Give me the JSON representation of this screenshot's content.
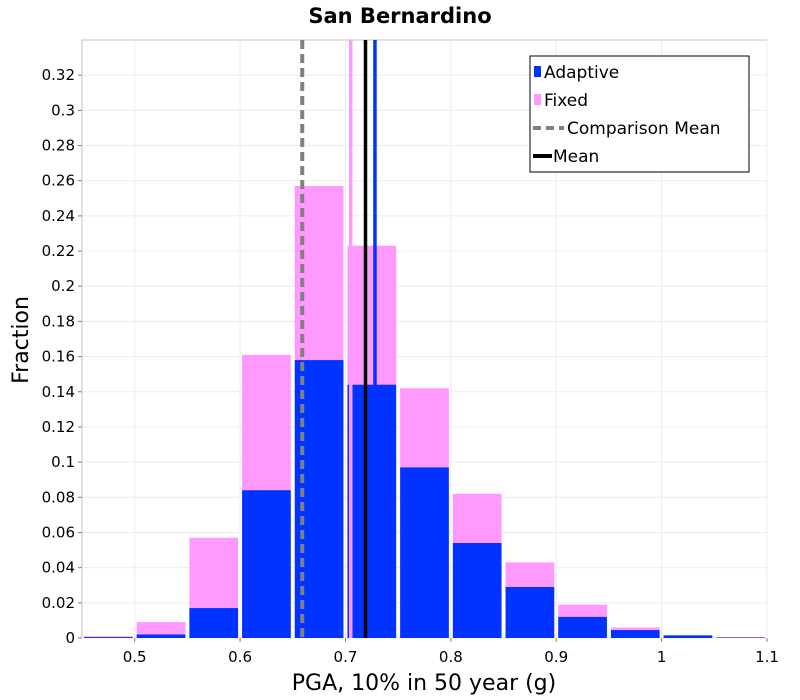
{
  "chart_data": {
    "type": "bar",
    "title": "San Bernardino",
    "xlabel": "PGA, 10% in 50 year (g)",
    "ylabel": "Fraction",
    "xlim": [
      0.45,
      1.1
    ],
    "ylim": [
      0,
      0.34
    ],
    "x_ticks": [
      0.5,
      0.6,
      0.7,
      0.8,
      0.9,
      1,
      1.1
    ],
    "y_ticks": [
      0,
      0.02,
      0.04,
      0.06,
      0.08,
      0.1,
      0.12,
      0.14,
      0.16,
      0.18,
      0.2,
      0.22,
      0.24,
      0.26,
      0.28,
      0.3,
      0.32
    ],
    "grid": true,
    "legend_position": "top-right",
    "bin_width": 0.05,
    "bin_centers": [
      0.475,
      0.525,
      0.575,
      0.625,
      0.675,
      0.725,
      0.775,
      0.825,
      0.875,
      0.925,
      0.975,
      1.025,
      1.075
    ],
    "series": [
      {
        "name": "Fixed",
        "color": "#ff99ff",
        "values": [
          0.001,
          0.009,
          0.057,
          0.161,
          0.257,
          0.223,
          0.142,
          0.082,
          0.043,
          0.019,
          0.006,
          0.001,
          0.0005
        ]
      },
      {
        "name": "Adaptive",
        "color": "#0033ff",
        "values": [
          0.0005,
          0.002,
          0.017,
          0.084,
          0.158,
          0.144,
          0.097,
          0.054,
          0.029,
          0.012,
          0.0045,
          0.0015,
          0.0003
        ]
      }
    ],
    "mean_lines": [
      {
        "label": "Comparison Mean",
        "legend": "Comparison Mean",
        "x": 0.659,
        "color": "#808080",
        "style": "dashed"
      },
      {
        "label": "Fixed mean",
        "legend": "",
        "x": 0.705,
        "color": "#ff99ff",
        "style": "solid"
      },
      {
        "label": "Mean",
        "legend": "Mean",
        "x": 0.719,
        "color": "#000000",
        "style": "solid"
      },
      {
        "label": "Adaptive mean",
        "legend": "",
        "x": 0.728,
        "color": "#0033ff",
        "style": "solid"
      }
    ],
    "legend": [
      {
        "label": "Adaptive",
        "kind": "box",
        "color": "#0033ff"
      },
      {
        "label": "Fixed",
        "kind": "box",
        "color": "#ff99ff"
      },
      {
        "label": "Comparison Mean",
        "kind": "dashed",
        "color": "#808080"
      },
      {
        "label": "Mean",
        "kind": "line",
        "color": "#000000"
      }
    ]
  }
}
